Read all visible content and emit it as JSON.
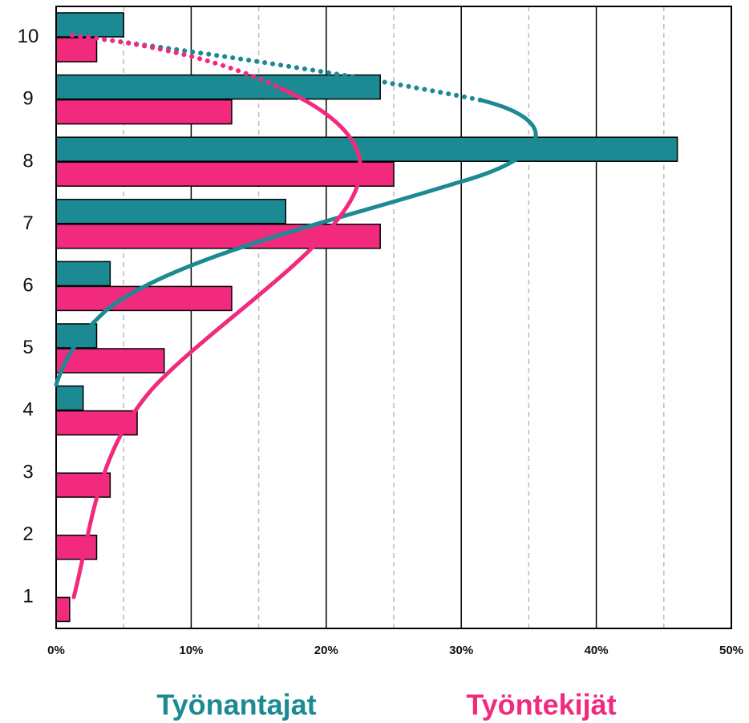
{
  "chart_data": {
    "type": "barh",
    "categories": [
      "1",
      "2",
      "3",
      "4",
      "5",
      "6",
      "7",
      "8",
      "9",
      "10"
    ],
    "series": [
      {
        "name": "Työnantajat",
        "color": "#1b8a93",
        "values": [
          0,
          0,
          0,
          2,
          3,
          4,
          17,
          46,
          24,
          5
        ]
      },
      {
        "name": "Työntekijät",
        "color": "#f22a7d",
        "values": [
          1,
          3,
          4,
          6,
          8,
          13,
          24,
          25,
          13,
          3
        ]
      }
    ],
    "xlim": [
      0,
      50
    ],
    "xticks": [
      {
        "value": 0,
        "label": "0%"
      },
      {
        "value": 10,
        "label": "10%"
      },
      {
        "value": 20,
        "label": "20%"
      },
      {
        "value": 30,
        "label": "30%"
      },
      {
        "value": 40,
        "label": "40%"
      },
      {
        "value": 50,
        "label": "50%"
      }
    ],
    "xminorticks": [
      5,
      15,
      25,
      35,
      45
    ],
    "grid": true
  }
}
